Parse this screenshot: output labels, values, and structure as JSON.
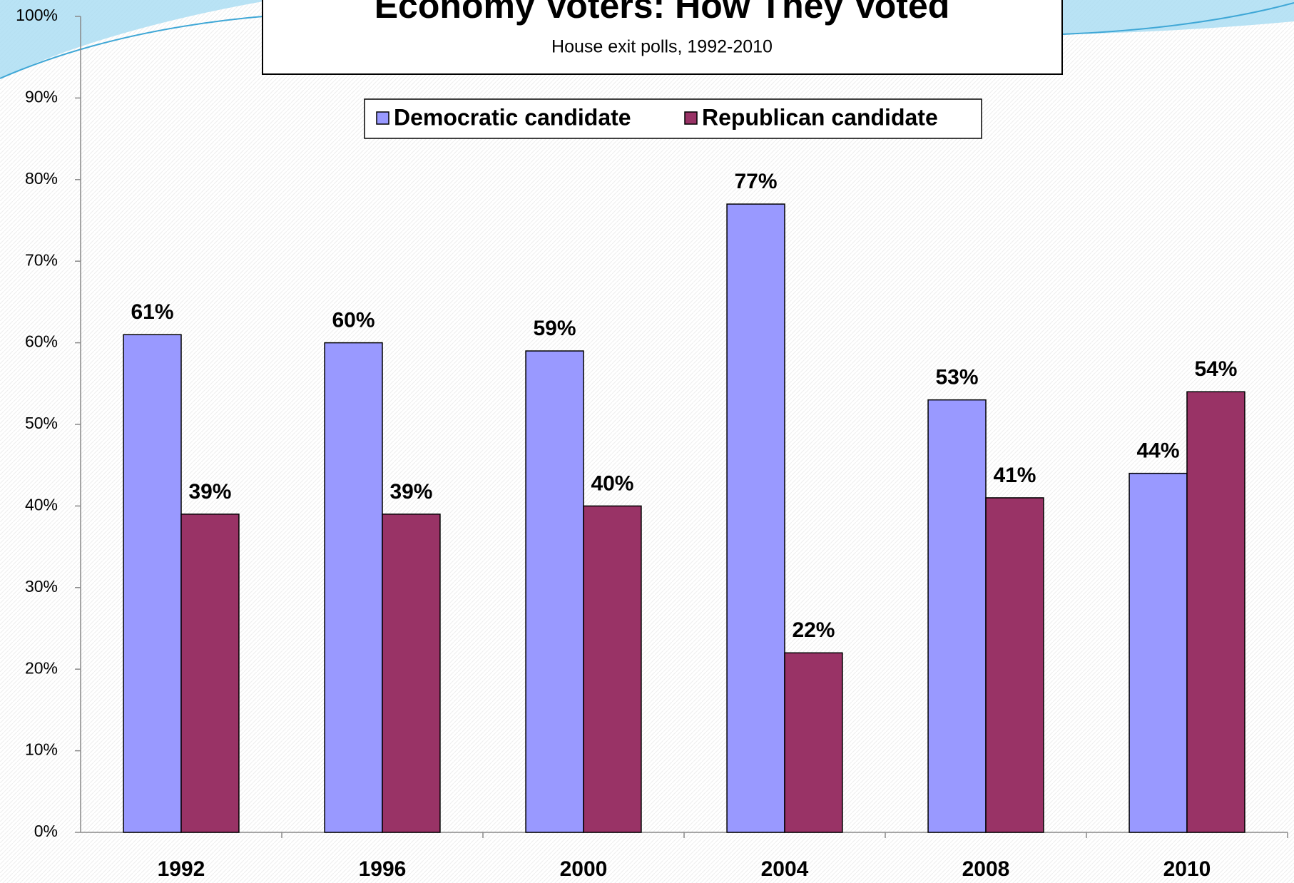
{
  "chart_data": {
    "type": "bar",
    "title": "Economy Voters: How They Voted",
    "subtitle": "House exit polls, 1992-2010",
    "categories": [
      "1992",
      "1996",
      "2000",
      "2004",
      "2008",
      "2010"
    ],
    "series": [
      {
        "name": "Democratic candidate",
        "color": "#9999ff",
        "values": [
          61,
          60,
          59,
          77,
          53,
          44
        ],
        "value_labels": [
          "61%",
          "60%",
          "59%",
          "77%",
          "53%",
          "44%"
        ]
      },
      {
        "name": "Republican candidate",
        "color": "#993366",
        "values": [
          39,
          39,
          40,
          22,
          41,
          54
        ],
        "value_labels": [
          "39%",
          "39%",
          "40%",
          "22%",
          "41%",
          "54%"
        ]
      }
    ],
    "ylim": [
      0,
      100
    ],
    "yticks": [
      {
        "value": 0,
        "label": "0%"
      },
      {
        "value": 10,
        "label": "10%"
      },
      {
        "value": 20,
        "label": "20%"
      },
      {
        "value": 30,
        "label": "30%"
      },
      {
        "value": 40,
        "label": "40%"
      },
      {
        "value": 50,
        "label": "50%"
      },
      {
        "value": 60,
        "label": "60%"
      },
      {
        "value": 70,
        "label": "70%"
      },
      {
        "value": 80,
        "label": "80%"
      },
      {
        "value": 90,
        "label": "90%"
      },
      {
        "value": 100,
        "label": "100%"
      }
    ],
    "grid": false,
    "legend": "top"
  }
}
